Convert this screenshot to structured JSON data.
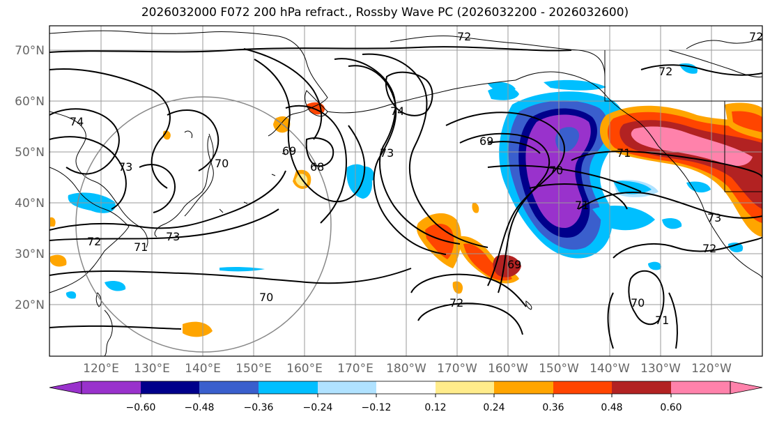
{
  "title": "2026032000 F072 200 hPa refract., Rossby Wave PC (2026032200 - 2026032600)",
  "map": {
    "lon_labels": [
      "120°E",
      "130°E",
      "140°E",
      "150°E",
      "160°E",
      "170°E",
      "180°W",
      "170°W",
      "160°W",
      "150°W",
      "140°W",
      "130°W",
      "120°W"
    ],
    "lat_labels": [
      "70°N",
      "60°N",
      "50°N",
      "40°N",
      "30°N",
      "20°N"
    ],
    "contour_labels": [
      "72",
      "74",
      "73",
      "70",
      "69",
      "68",
      "73",
      "74",
      "72",
      "71",
      "70",
      "69",
      "69",
      "70",
      "71",
      "73",
      "72",
      "71",
      "70",
      "72",
      "72",
      "71",
      "73",
      "72"
    ]
  },
  "colorbar": {
    "tick_labels": [
      "−0.60",
      "−0.48",
      "−0.36",
      "−0.24",
      "−0.12",
      "0.12",
      "0.24",
      "0.36",
      "0.48",
      "0.60"
    ],
    "colors": [
      "#9932CC",
      "#00008B",
      "#3A5FCD",
      "#00BFFF",
      "#B0E2FF",
      "#FFFFFF",
      "#FFEC8B",
      "#FFA500",
      "#FF4500",
      "#B22222",
      "#FF82AB"
    ]
  }
}
